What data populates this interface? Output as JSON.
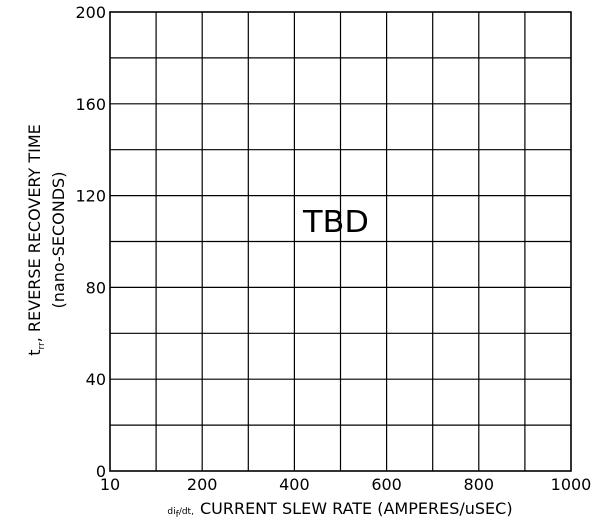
{
  "chart_data": {
    "type": "line",
    "title": "",
    "annotation": "TBD",
    "xlabel": {
      "prefix_main": "di",
      "prefix_sub": "f",
      "prefix_tail": "/dt,",
      "text": "CURRENT SLEW RATE (AMPERES/uSEC)"
    },
    "ylabel": {
      "line1_main": "t",
      "line1_sub": "rr",
      "line1_text": ", REVERSE RECOVERY TIME",
      "line2": "(nano-SECONDS)"
    },
    "x_tick_labels": [
      "10",
      "200",
      "400",
      "600",
      "800",
      "1000"
    ],
    "y_tick_labels": [
      "0",
      "40",
      "80",
      "120",
      "160",
      "200"
    ],
    "xlim": [
      0,
      1000
    ],
    "ylim": [
      0,
      200
    ],
    "x_grid_divisions": 10,
    "y_grid_divisions": 10,
    "grid": true,
    "series": []
  }
}
